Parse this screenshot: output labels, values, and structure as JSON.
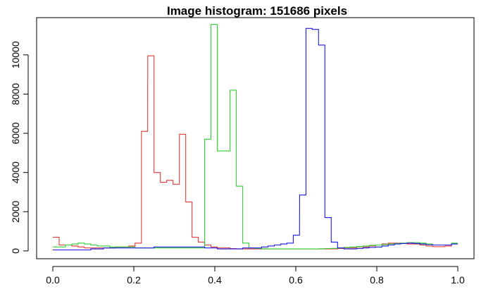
{
  "chart_data": {
    "type": "line",
    "title": "Image histogram: 151686 pixels",
    "xlabel": "",
    "ylabel": "",
    "xlim": [
      -0.04,
      1.04
    ],
    "ylim": [
      -400,
      11900
    ],
    "x_ticks": [
      0.0,
      0.2,
      0.4,
      0.6,
      0.8,
      1.0
    ],
    "x_tick_labels": [
      "0.0",
      "0.2",
      "0.4",
      "0.6",
      "0.8",
      "1.0"
    ],
    "y_ticks": [
      0,
      2000,
      4000,
      6000,
      8000,
      10000
    ],
    "y_tick_labels": [
      "0",
      "2000",
      "4000",
      "6000",
      "8000",
      "10000"
    ],
    "grid": false,
    "legend": "none",
    "step": true,
    "bin_width": 0.0156,
    "x": [
      0.0,
      0.0156,
      0.0312,
      0.0469,
      0.0625,
      0.0781,
      0.0937,
      0.1094,
      0.125,
      0.1406,
      0.1562,
      0.1719,
      0.1875,
      0.2031,
      0.2187,
      0.2344,
      0.25,
      0.2656,
      0.2812,
      0.2969,
      0.3125,
      0.3281,
      0.3437,
      0.3594,
      0.375,
      0.3906,
      0.4062,
      0.4219,
      0.4375,
      0.4531,
      0.4687,
      0.4844,
      0.5,
      0.5156,
      0.5312,
      0.5469,
      0.5625,
      0.5781,
      0.5937,
      0.6094,
      0.625,
      0.6406,
      0.6562,
      0.6719,
      0.6875,
      0.7031,
      0.7187,
      0.7344,
      0.75,
      0.7656,
      0.7812,
      0.7969,
      0.8125,
      0.8281,
      0.8437,
      0.8594,
      0.875,
      0.8906,
      0.9062,
      0.9219,
      0.9375,
      0.9531,
      0.9687,
      0.9844
    ],
    "series": [
      {
        "color": "#e03a3a",
        "values": [
          700,
          300,
          300,
          250,
          200,
          150,
          150,
          150,
          150,
          150,
          200,
          200,
          250,
          400,
          6100,
          9950,
          4000,
          3500,
          3600,
          3400,
          5950,
          2500,
          700,
          450,
          300,
          200,
          150,
          150,
          120,
          110,
          100,
          100,
          100,
          100,
          100,
          100,
          100,
          100,
          100,
          100,
          100,
          100,
          100,
          100,
          100,
          120,
          150,
          150,
          200,
          200,
          250,
          300,
          350,
          400,
          400,
          380,
          350,
          350,
          300,
          250,
          220,
          220,
          250,
          350
        ]
      },
      {
        "color": "#2fd02f",
        "values": [
          200,
          200,
          300,
          350,
          400,
          350,
          300,
          250,
          250,
          200,
          200,
          200,
          200,
          150,
          150,
          150,
          150,
          150,
          150,
          150,
          150,
          150,
          150,
          150,
          5700,
          11550,
          5100,
          5100,
          8200,
          3300,
          400,
          150,
          120,
          110,
          100,
          100,
          100,
          100,
          100,
          100,
          100,
          100,
          110,
          120,
          130,
          150,
          180,
          200,
          220,
          250,
          280,
          300,
          320,
          350,
          380,
          400,
          420,
          420,
          400,
          350,
          300,
          300,
          300,
          400
        ]
      },
      {
        "color": "#1a1aee",
        "values": [
          50,
          50,
          50,
          50,
          50,
          50,
          100,
          100,
          150,
          150,
          150,
          150,
          150,
          150,
          150,
          150,
          200,
          200,
          200,
          200,
          200,
          200,
          200,
          200,
          150,
          150,
          100,
          100,
          100,
          100,
          150,
          150,
          150,
          200,
          250,
          300,
          350,
          400,
          800,
          2850,
          11350,
          11300,
          10500,
          1700,
          450,
          150,
          100,
          100,
          120,
          150,
          180,
          200,
          250,
          300,
          350,
          380,
          400,
          380,
          350,
          320,
          300,
          300,
          300,
          350
        ]
      }
    ]
  }
}
